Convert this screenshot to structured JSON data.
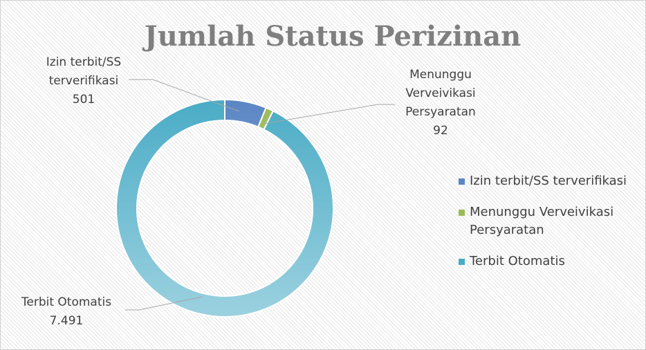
{
  "chart_data": {
    "type": "donut",
    "title": "Jumlah Status Perizinan",
    "categories": [
      "Izin terbit/SS terverifikasi",
      "Menunggu Verveivikasi Persyaratan",
      "Terbit Otomatis"
    ],
    "values": [
      501,
      92,
      7491
    ],
    "value_labels": [
      "501",
      "92",
      "7.491"
    ],
    "colors": [
      "#5a86c4",
      "#9bbb59",
      "#4bacc6"
    ],
    "legend": "right"
  }
}
